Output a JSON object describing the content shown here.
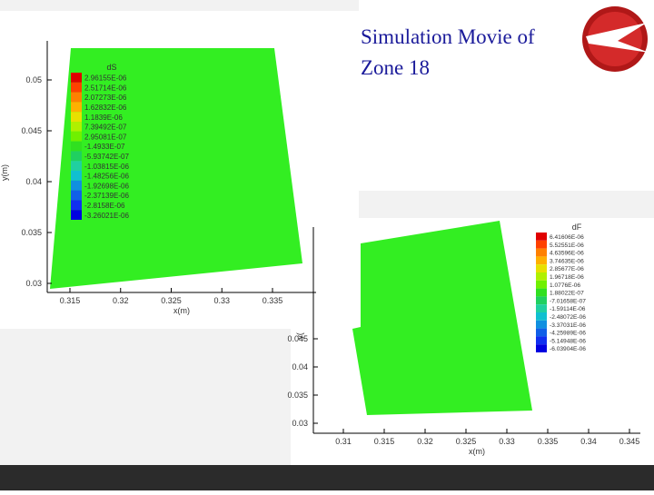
{
  "slide": {
    "title_lines": [
      "Simulation Movie of",
      "Zone 18"
    ]
  },
  "plots": [
    {
      "legend_title": "dS",
      "legend_values": [
        "2.96155E-06",
        "2.51714E-06",
        "2.07273E-06",
        "1.62832E-06",
        "1.1839E-06",
        "7.39492E-07",
        "2.95081E-07",
        "-1.4933E-07",
        "-5.93742E-07",
        "-1.03815E-06",
        "-1.48256E-06",
        "-1.92698E-06",
        "-2.37139E-06",
        "-2.8158E-06",
        "-3.26021E-06"
      ],
      "y_label": "y(m)",
      "x_label": "x(m)",
      "yticks": [
        "0.05",
        "0.045",
        "0.04",
        "0.035",
        "0.03"
      ],
      "xticks": [
        "0.315",
        "0.32",
        "0.325",
        "0.33",
        "0.335"
      ]
    },
    {
      "legend_title": "dF",
      "legend_values": [
        "6.41606E-06",
        "5.52551E-06",
        "4.63596E-06",
        "3.74635E-06",
        "2.85677E-06",
        "1.96718E-06",
        "1.0776E-06",
        "1.88022E-07",
        "-7.01658E-07",
        "-1.59114E-06",
        "-2.48072E-06",
        "-3.37031E-06",
        "-4.25989E-06",
        "-5.14948E-06",
        "-6.03904E-06"
      ],
      "y_label": "y(",
      "x_label": "x(m)",
      "yticks": [
        "0.045",
        "0.04",
        "0.035",
        "0.03"
      ],
      "xticks": [
        "0.31",
        "0.315",
        "0.32",
        "0.325",
        "0.33",
        "0.335",
        "0.34",
        "0.345"
      ]
    }
  ]
}
